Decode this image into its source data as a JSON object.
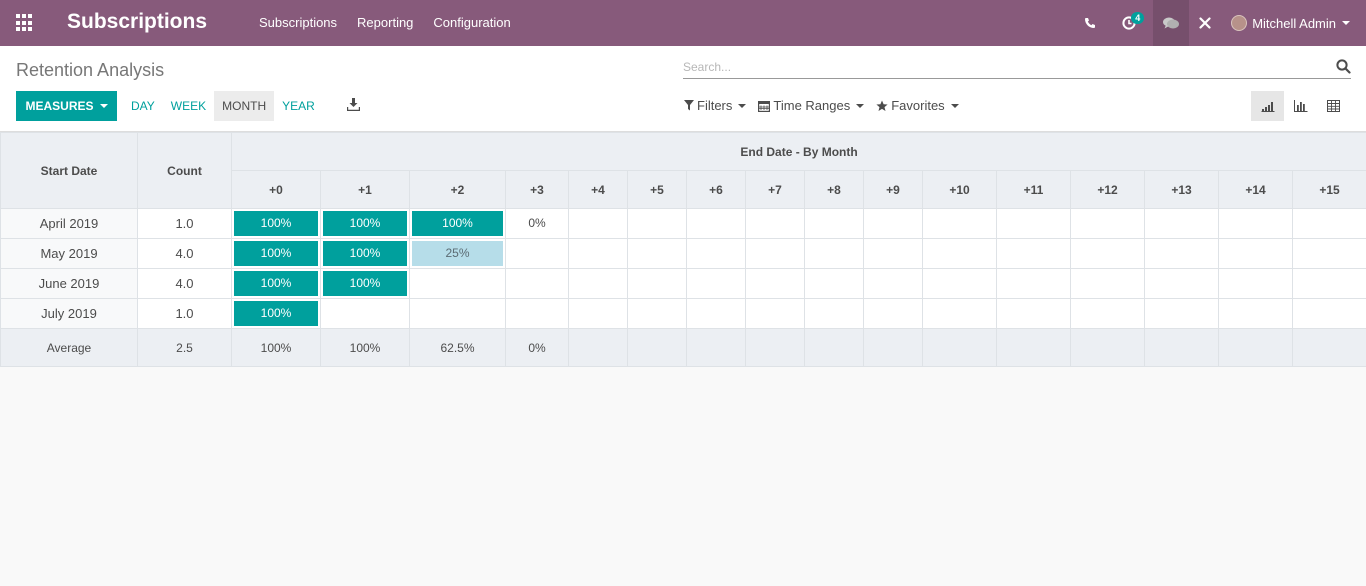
{
  "navbar": {
    "brand": "Subscriptions",
    "menu": [
      "Subscriptions",
      "Reporting",
      "Configuration"
    ],
    "activity_badge": "4",
    "user": "Mitchell Admin"
  },
  "control": {
    "title": "Retention Analysis",
    "search_placeholder": "Search...",
    "measures_label": "MEASURES",
    "intervals": [
      "DAY",
      "WEEK",
      "MONTH",
      "YEAR"
    ],
    "active_interval": "MONTH",
    "filters_label": "Filters",
    "time_ranges_label": "Time Ranges",
    "favorites_label": "Favorites"
  },
  "table": {
    "start_header": "Start Date",
    "count_header": "Count",
    "group_header": "End Date - By Month",
    "columns": [
      "+0",
      "+1",
      "+2",
      "+3",
      "+4",
      "+5",
      "+6",
      "+7",
      "+8",
      "+9",
      "+10",
      "+11",
      "+12",
      "+13",
      "+14",
      "+15"
    ],
    "rows": [
      {
        "date": "April 2019",
        "count": "1.0",
        "cells": [
          "100%",
          "100%",
          "100%",
          "0%"
        ]
      },
      {
        "date": "May 2019",
        "count": "4.0",
        "cells": [
          "100%",
          "100%",
          "25%"
        ]
      },
      {
        "date": "June 2019",
        "count": "4.0",
        "cells": [
          "100%",
          "100%"
        ]
      },
      {
        "date": "July 2019",
        "count": "1.0",
        "cells": [
          "100%"
        ]
      }
    ],
    "footer": {
      "label": "Average",
      "count": "2.5",
      "cells": [
        "100%",
        "100%",
        "62.5%",
        "0%"
      ]
    },
    "colors": {
      "full": "#00a09d",
      "partial": "#b6dde9",
      "text_full": "#ffffff",
      "text_partial": "#5b6b73"
    }
  }
}
